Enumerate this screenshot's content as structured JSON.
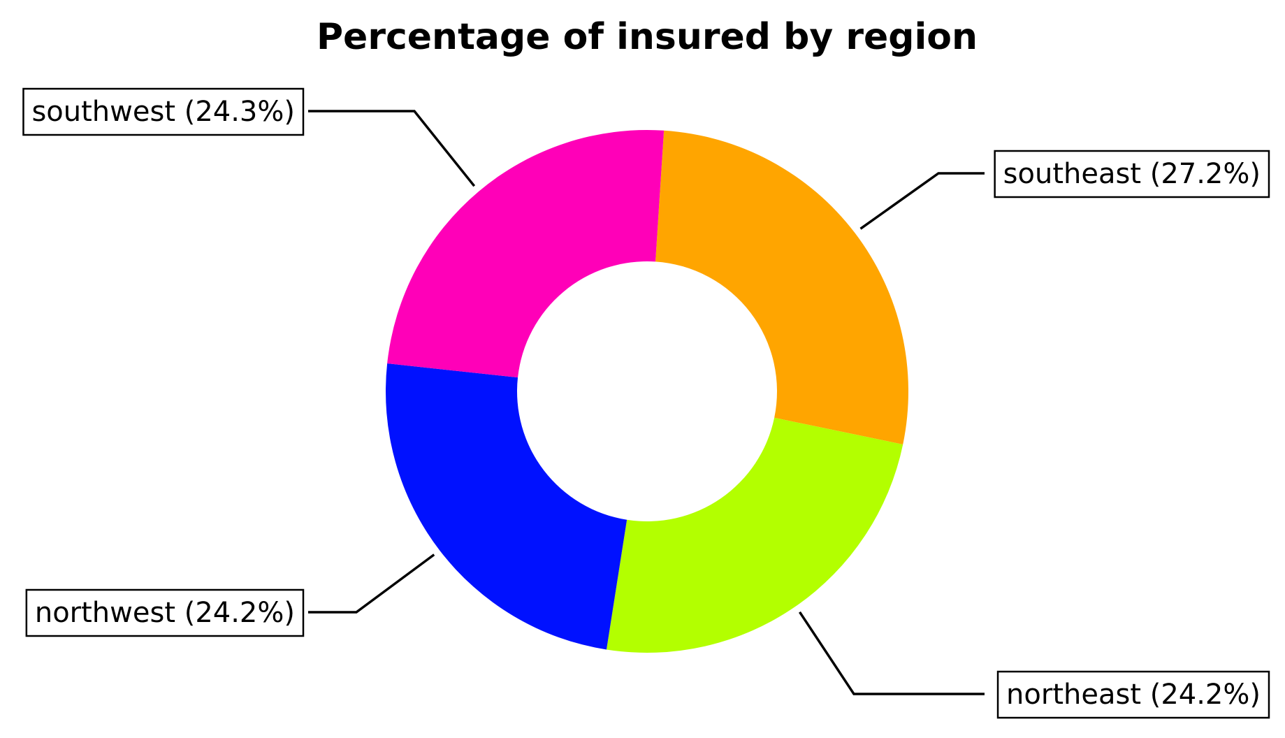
{
  "chart_data": {
    "type": "pie",
    "donut": true,
    "title": "Percentage of insured by region",
    "slices": [
      {
        "label": "southeast (27.2%)",
        "name": "southeast",
        "value": 27.2,
        "color": "#ffa500"
      },
      {
        "label": "northeast (24.2%)",
        "name": "northeast",
        "value": 24.2,
        "color": "#b3ff00"
      },
      {
        "label": "northwest (24.2%)",
        "name": "northwest",
        "value": 24.2,
        "color": "#0011ff"
      },
      {
        "label": "southwest (24.3%)",
        "name": "southwest",
        "value": 24.3,
        "color": "#ff00b8"
      }
    ]
  }
}
